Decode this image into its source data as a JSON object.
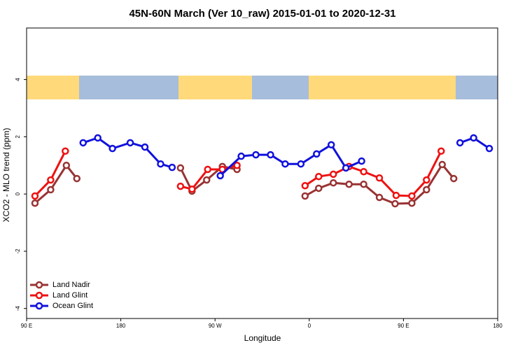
{
  "chart_data": {
    "type": "line",
    "title": "45N-60N March (Ver 10_raw)   2015-01-01 to 2020-12-31",
    "x_label": "Longitude",
    "y_label": "XCO2 - MLO trend (ppm)",
    "xlim": [
      90,
      540
    ],
    "ylim": [
      -4.35,
      5.8
    ],
    "xticks": [
      {
        "value": 90,
        "label": "90 E"
      },
      180,
      {
        "value": 270,
        "label": "90 W"
      },
      {
        "value": 360,
        "label": "0"
      },
      {
        "value": 450,
        "label": "90 E"
      },
      180
    ],
    "yticks": [
      -4,
      -2,
      0,
      2,
      4
    ],
    "legend": "bottom-left",
    "series": [
      {
        "name": "Land Nadir",
        "color": "#993333",
        "x": [
          98,
          113,
          128,
          138,
          null,
          237,
          248,
          262,
          277,
          291,
          null,
          356,
          369,
          383,
          398,
          412,
          427,
          442,
          458,
          472,
          487,
          498
        ],
        "values": [
          -0.32,
          0.15,
          1.0,
          0.54,
          null,
          0.91,
          0.1,
          0.49,
          0.96,
          0.86,
          null,
          -0.07,
          0.2,
          0.39,
          0.34,
          0.34,
          -0.12,
          -0.34,
          -0.32,
          0.15,
          1.03,
          0.54
        ]
      },
      {
        "name": "Land Glint",
        "color": "#ee1111",
        "x": [
          98,
          113,
          127,
          null,
          237,
          248,
          263,
          277,
          291,
          null,
          356,
          369,
          383,
          398,
          412,
          427,
          443,
          458,
          472,
          486
        ],
        "values": [
          -0.07,
          0.49,
          1.5,
          null,
          0.27,
          0.17,
          0.86,
          0.86,
          1.0,
          null,
          0.29,
          0.61,
          0.69,
          0.96,
          0.78,
          0.56,
          -0.05,
          -0.07,
          0.49,
          1.5
        ]
      },
      {
        "name": "Ocean Glint",
        "color": "#1111dd",
        "x": [
          144,
          158,
          172,
          189,
          203,
          218,
          229,
          null,
          275,
          295,
          309,
          323,
          337,
          352,
          367,
          381,
          395,
          410,
          null,
          504,
          517,
          532
        ],
        "values": [
          1.79,
          1.96,
          1.59,
          1.79,
          1.64,
          1.05,
          0.93,
          null,
          0.64,
          1.32,
          1.37,
          1.37,
          1.05,
          1.05,
          1.4,
          1.72,
          0.91,
          1.15,
          null,
          1.79,
          1.96,
          1.59
        ]
      }
    ]
  }
}
